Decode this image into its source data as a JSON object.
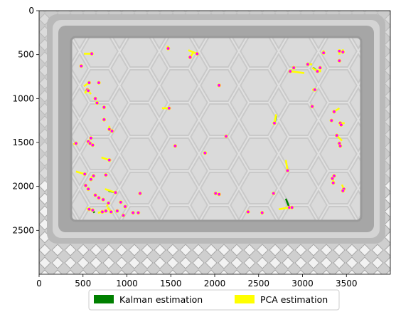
{
  "chart_data": {
    "type": "image",
    "xlim": [
      0,
      4000
    ],
    "ylim": [
      3000,
      0
    ],
    "x_ticks": [
      0,
      500,
      1000,
      1500,
      2000,
      2500,
      3000,
      3500
    ],
    "y_ticks": [
      0,
      500,
      1000,
      1500,
      2000,
      2500
    ],
    "legend": {
      "placement": "below",
      "entries": [
        {
          "label": "Kalman estimation",
          "color": "#008000"
        },
        {
          "label": "PCA estimation",
          "color": "#ffff00"
        }
      ]
    },
    "marker_colors": {
      "center": "#ff00ff",
      "edge": "#ffff00"
    },
    "detections": [
      {
        "x": 1470,
        "y": 430,
        "pca": [
          -10,
          -30
        ],
        "kalman": [
          0,
          -20
        ]
      },
      {
        "x": 600,
        "y": 490,
        "pca": [
          -90,
          0
        ]
      },
      {
        "x": 1720,
        "y": 530,
        "pca": [
          40,
          -60
        ]
      },
      {
        "x": 1800,
        "y": 490,
        "pca": [
          -100,
          -40
        ]
      },
      {
        "x": 2860,
        "y": 690,
        "pca": [
          160,
          20
        ]
      },
      {
        "x": 3060,
        "y": 610,
        "pca": [
          50,
          0
        ],
        "kalman": [
          40,
          0
        ]
      },
      {
        "x": 3240,
        "y": 480,
        "pca": [
          0,
          -30
        ]
      },
      {
        "x": 3170,
        "y": 690,
        "pca": [
          -60,
          -40
        ],
        "kalman": [
          -50,
          -40
        ]
      },
      {
        "x": 3200,
        "y": 650,
        "pca": [
          0,
          50
        ]
      },
      {
        "x": 3420,
        "y": 460,
        "pca": [
          0,
          40
        ]
      },
      {
        "x": 3460,
        "y": 470,
        "pca": [
          0,
          -30
        ]
      },
      {
        "x": 3420,
        "y": 570
      },
      {
        "x": 2900,
        "y": 650
      },
      {
        "x": 480,
        "y": 630
      },
      {
        "x": 570,
        "y": 820,
        "pca": [
          -60,
          40
        ]
      },
      {
        "x": 680,
        "y": 820
      },
      {
        "x": 550,
        "y": 900,
        "pca": [
          -30,
          40
        ],
        "kalman": [
          -20,
          20
        ]
      },
      {
        "x": 640,
        "y": 1000
      },
      {
        "x": 660,
        "y": 1050
      },
      {
        "x": 560,
        "y": 910,
        "pca": [
          30,
          40
        ]
      },
      {
        "x": 740,
        "y": 1100
      },
      {
        "x": 2050,
        "y": 850
      },
      {
        "x": 1480,
        "y": 1110,
        "pca": [
          -80,
          0
        ]
      },
      {
        "x": 3140,
        "y": 900,
        "pca": [
          -30,
          0
        ]
      },
      {
        "x": 3110,
        "y": 1090
      },
      {
        "x": 3360,
        "y": 1150,
        "pca": [
          60,
          -40
        ]
      },
      {
        "x": 740,
        "y": 1240
      },
      {
        "x": 2680,
        "y": 1280,
        "pca": [
          20,
          -100
        ],
        "kalman": [
          20,
          -80
        ]
      },
      {
        "x": 3330,
        "y": 1250
      },
      {
        "x": 3430,
        "y": 1280,
        "pca": [
          50,
          0
        ]
      },
      {
        "x": 3440,
        "y": 1300
      },
      {
        "x": 800,
        "y": 1350,
        "pca": [
          0,
          -40
        ]
      },
      {
        "x": 830,
        "y": 1370
      },
      {
        "x": 2130,
        "y": 1430
      },
      {
        "x": 3390,
        "y": 1420,
        "pca": [
          60,
          60
        ]
      },
      {
        "x": 420,
        "y": 1510,
        "pca": [
          -30,
          10
        ]
      },
      {
        "x": 560,
        "y": 1490
      },
      {
        "x": 590,
        "y": 1450
      },
      {
        "x": 580,
        "y": 1510
      },
      {
        "x": 610,
        "y": 1530
      },
      {
        "x": 1550,
        "y": 1540,
        "pca": [
          -10,
          -20
        ]
      },
      {
        "x": 3420,
        "y": 1510
      },
      {
        "x": 3430,
        "y": 1540
      },
      {
        "x": 1890,
        "y": 1620
      },
      {
        "x": 800,
        "y": 1700,
        "pca": [
          -90,
          -30
        ]
      },
      {
        "x": 2830,
        "y": 1820,
        "pca": [
          -20,
          -120
        ]
      },
      {
        "x": 520,
        "y": 1860,
        "pca": [
          -100,
          -30
        ]
      },
      {
        "x": 620,
        "y": 1880,
        "pca": [
          -30,
          20
        ]
      },
      {
        "x": 590,
        "y": 1920
      },
      {
        "x": 760,
        "y": 1870
      },
      {
        "x": 3360,
        "y": 1880
      },
      {
        "x": 3340,
        "y": 1910,
        "pca": [
          20,
          50
        ]
      },
      {
        "x": 3350,
        "y": 1960
      },
      {
        "x": 3470,
        "y": 2030,
        "pca": [
          -20,
          -50
        ]
      },
      {
        "x": 530,
        "y": 1990
      },
      {
        "x": 560,
        "y": 2030
      },
      {
        "x": 870,
        "y": 2070,
        "pca": [
          -120,
          -40
        ],
        "kalman": [
          -80,
          -20
        ]
      },
      {
        "x": 1150,
        "y": 2080
      },
      {
        "x": 2010,
        "y": 2080
      },
      {
        "x": 2050,
        "y": 2090
      },
      {
        "x": 2670,
        "y": 2080
      },
      {
        "x": 3460,
        "y": 2050
      },
      {
        "x": 640,
        "y": 2100
      },
      {
        "x": 680,
        "y": 2130
      },
      {
        "x": 730,
        "y": 2150
      },
      {
        "x": 790,
        "y": 2190,
        "pca": [
          -20,
          40
        ]
      },
      {
        "x": 930,
        "y": 2180
      },
      {
        "x": 980,
        "y": 2230
      },
      {
        "x": 2850,
        "y": 2240,
        "pca": [
          -120,
          20
        ],
        "kalman": [
          -40,
          -100
        ]
      },
      {
        "x": 2880,
        "y": 2240
      },
      {
        "x": 570,
        "y": 2260,
        "pca": [
          -30,
          -10
        ]
      },
      {
        "x": 610,
        "y": 2270,
        "kalman": [
          20,
          30
        ]
      },
      {
        "x": 720,
        "y": 2290,
        "pca": [
          -50,
          10
        ]
      },
      {
        "x": 760,
        "y": 2280
      },
      {
        "x": 820,
        "y": 2290,
        "pca": [
          -40,
          -50
        ]
      },
      {
        "x": 890,
        "y": 2280
      },
      {
        "x": 960,
        "y": 2330
      },
      {
        "x": 1070,
        "y": 2300
      },
      {
        "x": 1130,
        "y": 2300
      },
      {
        "x": 2380,
        "y": 2290
      },
      {
        "x": 2540,
        "y": 2300
      }
    ]
  }
}
